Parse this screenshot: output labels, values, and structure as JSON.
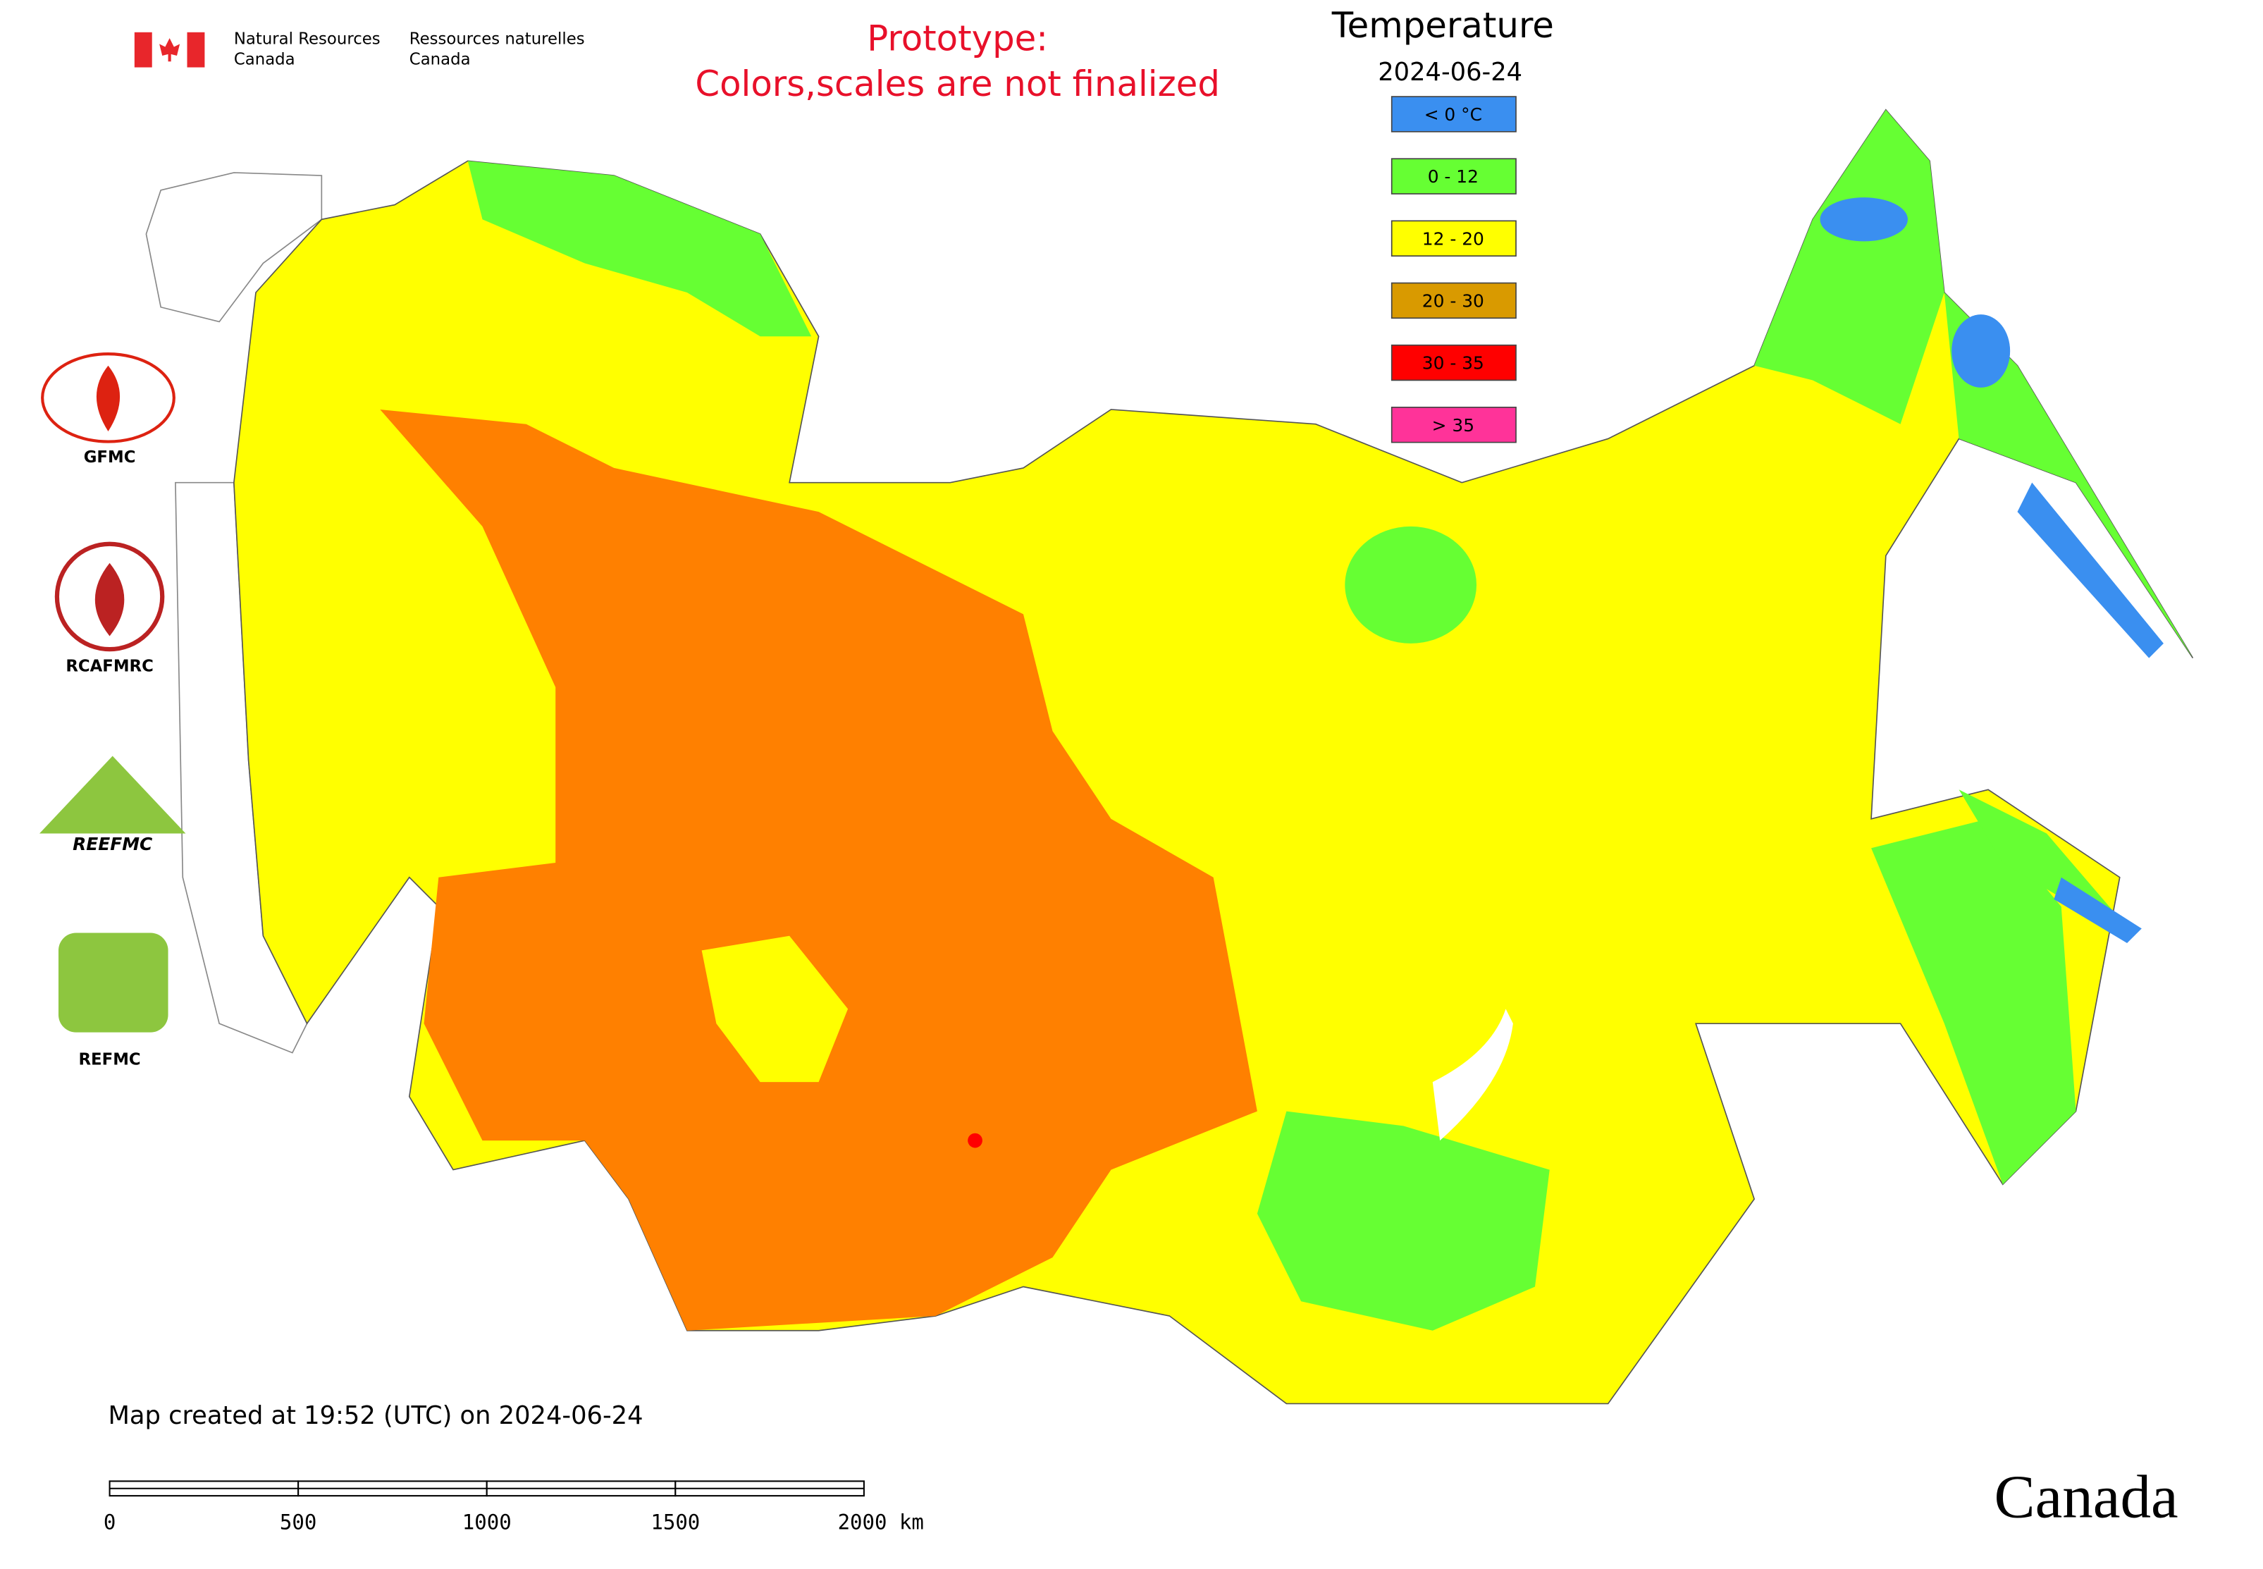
{
  "header": {
    "agency_en": [
      "Natural Resources",
      "Canada"
    ],
    "agency_fr": [
      "Ressources naturelles",
      "Canada"
    ]
  },
  "notice": [
    "Prototype:",
    "Colors,scales are not finalized"
  ],
  "legend": {
    "title": "Temperature",
    "date": "2024-06-24",
    "items": [
      {
        "label": "< 0 °C",
        "color": "#3a8ff0"
      },
      {
        "label": "0 - 12",
        "color": "#66ff33"
      },
      {
        "label": "12 - 20",
        "color": "#ffff00"
      },
      {
        "label": "20 - 30",
        "color": "#d99a00"
      },
      {
        "label": "30 - 35",
        "color": "#ff0000"
      },
      {
        "label": "> 35",
        "color": "#ff3399"
      }
    ]
  },
  "logos": [
    "GFMC",
    "RCAFMRC",
    "REEFMC",
    "REFMC"
  ],
  "footer": {
    "created": "Map created at 19:52 (UTC) on 2024-06-24",
    "scale_labels": [
      "0",
      "500",
      "1000",
      "1500",
      "2000 km"
    ],
    "wordmark": "Canada"
  }
}
